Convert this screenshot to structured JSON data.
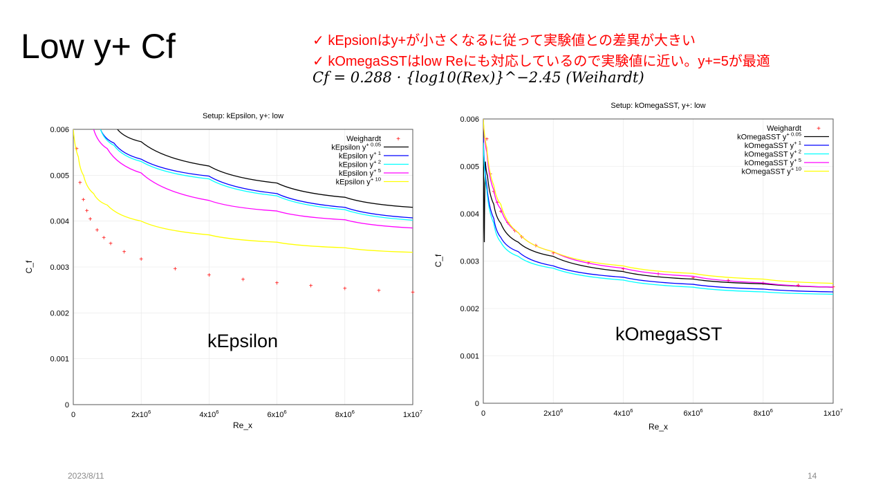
{
  "slide": {
    "title": "Low y+ Cf",
    "notes": [
      "✓ kEpsionはy+が小さくなるに従って実験値との差異が大きい",
      "✓ kOmegaSSTはlow Reにも対応しているので実験値に近い。y+=5が最適"
    ],
    "formula": "Cf = 0.288 · {log10(Rex)}^−2.45 (Weihardt)",
    "date": "2023/8/11",
    "page": "14",
    "labels": [
      "kEpsilon",
      "kOmegaSST"
    ]
  },
  "chart_data": [
    {
      "type": "line",
      "title": "Setup: kEpsilon, y+: low",
      "xlabel": "Re_x",
      "ylabel": "C_f",
      "xlim": [
        0,
        10000000
      ],
      "ylim": [
        0,
        0.006
      ],
      "grid": true,
      "legend": "top-right",
      "xticks": [
        "0",
        "2x10^6",
        "4x10^6",
        "6x10^6",
        "8x10^6",
        "1x10^7"
      ],
      "yticks": [
        "0",
        "0.001",
        "0.002",
        "0.003",
        "0.004",
        "0.005",
        "0.006"
      ],
      "series": [
        {
          "name": "Weighardt",
          "color": "#ff0000",
          "style": "points",
          "x": [
            100000,
            200000,
            300000,
            400000,
            500000,
            700000,
            900000,
            1100000,
            1500000,
            2000000,
            3000000,
            4000000,
            5000000,
            6000000,
            7000000,
            8000000,
            9000000,
            10000000
          ],
          "y": [
            0.00558,
            0.00484,
            0.00447,
            0.00423,
            0.00405,
            0.00381,
            0.00364,
            0.00351,
            0.00333,
            0.00317,
            0.00296,
            0.00283,
            0.00273,
            0.00265,
            0.00259,
            0.00253,
            0.00249,
            0.00245
          ]
        },
        {
          "name": "kEpsilon y+ 0.05",
          "color": "#000000",
          "x": [
            1300000,
            2000000,
            4000000,
            6000000,
            8000000,
            10000000
          ],
          "y": [
            0.006,
            0.00573,
            0.0052,
            0.00483,
            0.00452,
            0.0043
          ]
        },
        {
          "name": "kEpsilon y+ 1",
          "color": "#0000ff",
          "x": [
            800000,
            1200000,
            2000000,
            4000000,
            6000000,
            8000000,
            10000000
          ],
          "y": [
            0.006,
            0.0057,
            0.00535,
            0.00498,
            0.0046,
            0.0043,
            0.00407
          ]
        },
        {
          "name": "kEpsilon y+ 2",
          "color": "#00ffff",
          "x": [
            800000,
            1200000,
            2000000,
            4000000,
            6000000,
            8000000,
            10000000
          ],
          "y": [
            0.006,
            0.00565,
            0.0053,
            0.00492,
            0.00455,
            0.00425,
            0.00402
          ]
        },
        {
          "name": "kEpsilon y+ 5",
          "color": "#ff00ff",
          "x": [
            600000,
            1000000,
            2000000,
            4000000,
            6000000,
            8000000,
            10000000
          ],
          "y": [
            0.006,
            0.00558,
            0.00505,
            0.00445,
            0.00422,
            0.00403,
            0.00385
          ]
        },
        {
          "name": "kEpsilon y+ 10",
          "color": "#ffff00",
          "x": [
            0,
            150000,
            300000,
            600000,
            1000000,
            2000000,
            4000000,
            6000000,
            8000000,
            10000000
          ],
          "y": [
            0.006,
            0.0054,
            0.005,
            0.0046,
            0.00435,
            0.004,
            0.0037,
            0.00354,
            0.00342,
            0.00332
          ]
        }
      ]
    },
    {
      "type": "line",
      "title": "Setup: kOmegaSST, y+: low",
      "xlabel": "Re_x",
      "ylabel": "C_f",
      "xlim": [
        0,
        10000000
      ],
      "ylim": [
        0,
        0.006
      ],
      "grid": true,
      "legend": "top-right",
      "xticks": [
        "0",
        "2x10^6",
        "4x10^6",
        "6x10^6",
        "8x10^6",
        "1x10^7"
      ],
      "yticks": [
        "0",
        "0.001",
        "0.002",
        "0.003",
        "0.004",
        "0.005",
        "0.006"
      ],
      "series": [
        {
          "name": "Weighardt",
          "color": "#ff0000",
          "style": "points",
          "x": [
            100000,
            200000,
            300000,
            400000,
            500000,
            700000,
            900000,
            1100000,
            1500000,
            2000000,
            3000000,
            4000000,
            5000000,
            6000000,
            7000000,
            8000000,
            9000000,
            10000000
          ],
          "y": [
            0.00558,
            0.00484,
            0.00447,
            0.00423,
            0.00405,
            0.00381,
            0.00364,
            0.00351,
            0.00333,
            0.00317,
            0.00296,
            0.00283,
            0.00273,
            0.00265,
            0.00259,
            0.00253,
            0.00249,
            0.00245
          ]
        },
        {
          "name": "kOmegaSST y+ 0.05",
          "color": "#000000",
          "x": [
            0,
            30000,
            60000,
            120000,
            300000,
            500000,
            1000000,
            2000000,
            4000000,
            6000000,
            8000000,
            10000000
          ],
          "y": [
            0.006,
            0.0034,
            0.0051,
            0.0048,
            0.0042,
            0.0038,
            0.0034,
            0.0031,
            0.00278,
            0.00262,
            0.00252,
            0.00245
          ]
        },
        {
          "name": "kOmegaSST y+ 1",
          "color": "#0000ff",
          "x": [
            0,
            100000,
            300000,
            500000,
            1000000,
            2000000,
            4000000,
            6000000,
            8000000,
            10000000
          ],
          "y": [
            0.0056,
            0.0046,
            0.0039,
            0.0035,
            0.0032,
            0.0029,
            0.00266,
            0.00251,
            0.00241,
            0.00235
          ]
        },
        {
          "name": "kOmegaSST y+ 2",
          "color": "#00ffff",
          "x": [
            0,
            100000,
            300000,
            500000,
            1000000,
            2000000,
            4000000,
            6000000,
            8000000,
            10000000
          ],
          "y": [
            0.0055,
            0.0045,
            0.0038,
            0.0034,
            0.0031,
            0.00285,
            0.0026,
            0.00245,
            0.00235,
            0.0023
          ]
        },
        {
          "name": "kOmegaSST y+ 5",
          "color": "#ff00ff",
          "x": [
            0,
            100000,
            300000,
            500000,
            1000000,
            2000000,
            4000000,
            6000000,
            8000000,
            10000000
          ],
          "y": [
            0.006,
            0.0053,
            0.0045,
            0.0041,
            0.0036,
            0.0032,
            0.00285,
            0.00268,
            0.00254,
            0.00245
          ]
        },
        {
          "name": "kOmegaSST y+ 10",
          "color": "#ffff00",
          "x": [
            0,
            100000,
            300000,
            500000,
            1000000,
            2000000,
            4000000,
            6000000,
            8000000,
            10000000
          ],
          "y": [
            0.006,
            0.0054,
            0.0046,
            0.0042,
            0.0036,
            0.0032,
            0.0029,
            0.00274,
            0.00262,
            0.00253
          ]
        }
      ]
    }
  ]
}
